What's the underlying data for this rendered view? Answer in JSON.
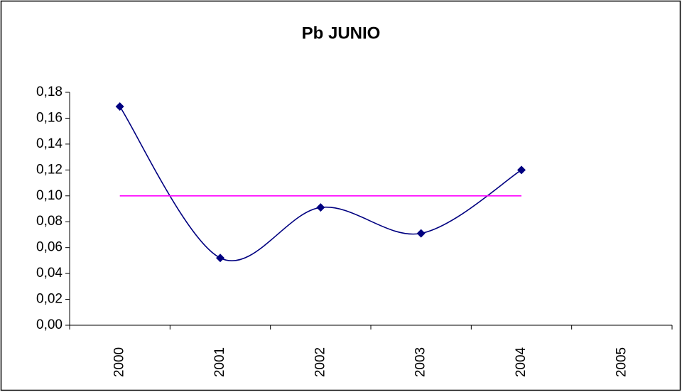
{
  "chart_data": {
    "type": "line",
    "title": "Pb JUNIO",
    "categories": [
      "2000",
      "2001",
      "2002",
      "2003",
      "2004",
      "2005"
    ],
    "series": [
      {
        "color": "#000080",
        "values": [
          0.169,
          0.052,
          0.091,
          0.071,
          0.12,
          null
        ],
        "smooth": true,
        "markers": true
      },
      {
        "color": "#ff00ff",
        "values": [
          0.1,
          0.1,
          0.1,
          0.1,
          0.1,
          null
        ],
        "smooth": false,
        "markers": false
      }
    ],
    "ylim": [
      0,
      0.18
    ],
    "yticks": [
      {
        "value": 0,
        "label": "0,00"
      },
      {
        "value": 0.02,
        "label": "0,02"
      },
      {
        "value": 0.04,
        "label": "0,04"
      },
      {
        "value": 0.06,
        "label": "0,06"
      },
      {
        "value": 0.08,
        "label": "0,08"
      },
      {
        "value": 0.1,
        "label": "0,10"
      },
      {
        "value": 0.12,
        "label": "0,12"
      },
      {
        "value": 0.14,
        "label": "0,14"
      },
      {
        "value": 0.16,
        "label": "0,16"
      },
      {
        "value": 0.18,
        "label": "0,18"
      }
    ],
    "grid": false
  }
}
